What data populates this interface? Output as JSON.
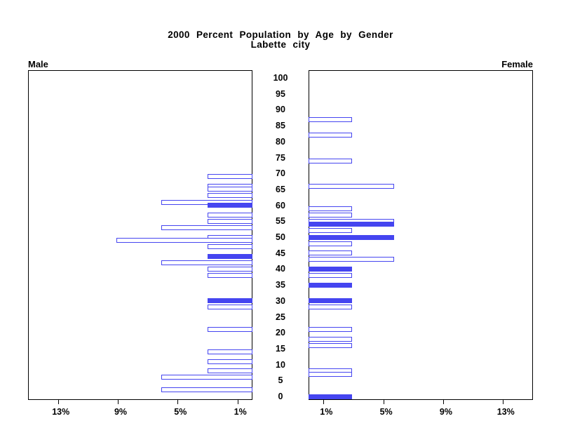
{
  "title": {
    "line1": "2000 Percent Population by Age by Gender",
    "line2": "Labette city"
  },
  "panels": {
    "male_label": "Male",
    "female_label": "Female"
  },
  "colors": {
    "bar_blue": "#4545f0",
    "axis_black": "#000000",
    "background": "#ffffff"
  },
  "chart_data": {
    "type": "bar",
    "subtype": "population-pyramid",
    "title": "2000 Percent Population by Age by Gender",
    "subtitle": "Labette city",
    "age_axis": {
      "min": 0,
      "max": 100,
      "tick_step": 5,
      "tick_labels": [
        "100",
        "95",
        "90",
        "85",
        "80",
        "75",
        "70",
        "65",
        "60",
        "55",
        "50",
        "45",
        "40",
        "35",
        "30",
        "25",
        "20",
        "15",
        "10",
        "5",
        "0"
      ]
    },
    "pct_axis": {
      "max_pct": 15,
      "tick_values": [
        13,
        9,
        5,
        1
      ],
      "tick_labels_male": [
        "13%",
        "9%",
        "5%",
        "1%"
      ],
      "tick_labels_female": [
        "1%",
        "5%",
        "9%",
        "13%"
      ],
      "grid": false
    },
    "legend": "none",
    "series": [
      {
        "name": "Male",
        "side": "left",
        "bars": [
          {
            "age": 69,
            "pct": 3.0,
            "fill": "outline"
          },
          {
            "age": 66,
            "pct": 3.0,
            "fill": "outline"
          },
          {
            "age": 65,
            "pct": 3.0,
            "fill": "outline"
          },
          {
            "age": 63,
            "pct": 3.0,
            "fill": "outline"
          },
          {
            "age": 61,
            "pct": 6.1,
            "fill": "outline"
          },
          {
            "age": 60,
            "pct": 3.0,
            "fill": "solid"
          },
          {
            "age": 57,
            "pct": 3.0,
            "fill": "outline"
          },
          {
            "age": 55,
            "pct": 3.0,
            "fill": "outline"
          },
          {
            "age": 53,
            "pct": 6.1,
            "fill": "outline"
          },
          {
            "age": 50,
            "pct": 3.0,
            "fill": "outline"
          },
          {
            "age": 49,
            "pct": 9.1,
            "fill": "outline"
          },
          {
            "age": 47,
            "pct": 3.0,
            "fill": "outline"
          },
          {
            "age": 44,
            "pct": 3.0,
            "fill": "solid"
          },
          {
            "age": 42,
            "pct": 6.1,
            "fill": "outline"
          },
          {
            "age": 40,
            "pct": 3.0,
            "fill": "outline"
          },
          {
            "age": 38,
            "pct": 3.0,
            "fill": "outline"
          },
          {
            "age": 30,
            "pct": 3.0,
            "fill": "solid"
          },
          {
            "age": 28,
            "pct": 3.0,
            "fill": "outline"
          },
          {
            "age": 21,
            "pct": 3.0,
            "fill": "outline"
          },
          {
            "age": 14,
            "pct": 3.0,
            "fill": "outline"
          },
          {
            "age": 11,
            "pct": 3.0,
            "fill": "outline"
          },
          {
            "age": 8,
            "pct": 3.0,
            "fill": "outline"
          },
          {
            "age": 6,
            "pct": 6.1,
            "fill": "outline"
          },
          {
            "age": 2,
            "pct": 6.1,
            "fill": "outline"
          }
        ]
      },
      {
        "name": "Female",
        "side": "right",
        "bars": [
          {
            "age": 87,
            "pct": 2.9,
            "fill": "outline"
          },
          {
            "age": 82,
            "pct": 2.9,
            "fill": "outline"
          },
          {
            "age": 74,
            "pct": 2.9,
            "fill": "outline"
          },
          {
            "age": 66,
            "pct": 5.7,
            "fill": "outline"
          },
          {
            "age": 59,
            "pct": 2.9,
            "fill": "outline"
          },
          {
            "age": 57,
            "pct": 2.9,
            "fill": "outline"
          },
          {
            "age": 55,
            "pct": 5.7,
            "fill": "outline"
          },
          {
            "age": 54,
            "pct": 5.7,
            "fill": "solid"
          },
          {
            "age": 52,
            "pct": 2.9,
            "fill": "outline"
          },
          {
            "age": 50,
            "pct": 5.7,
            "fill": "solid"
          },
          {
            "age": 48,
            "pct": 2.9,
            "fill": "outline"
          },
          {
            "age": 45,
            "pct": 2.9,
            "fill": "outline"
          },
          {
            "age": 43,
            "pct": 5.7,
            "fill": "outline"
          },
          {
            "age": 40,
            "pct": 2.9,
            "fill": "solid"
          },
          {
            "age": 38,
            "pct": 2.9,
            "fill": "outline"
          },
          {
            "age": 35,
            "pct": 2.9,
            "fill": "solid"
          },
          {
            "age": 30,
            "pct": 2.9,
            "fill": "solid"
          },
          {
            "age": 28,
            "pct": 2.9,
            "fill": "outline"
          },
          {
            "age": 21,
            "pct": 2.9,
            "fill": "outline"
          },
          {
            "age": 18,
            "pct": 2.9,
            "fill": "outline"
          },
          {
            "age": 16,
            "pct": 2.9,
            "fill": "outline"
          },
          {
            "age": 8,
            "pct": 2.9,
            "fill": "outline"
          },
          {
            "age": 7,
            "pct": 2.9,
            "fill": "outline"
          },
          {
            "age": 0,
            "pct": 2.9,
            "fill": "solid"
          }
        ]
      }
    ]
  }
}
